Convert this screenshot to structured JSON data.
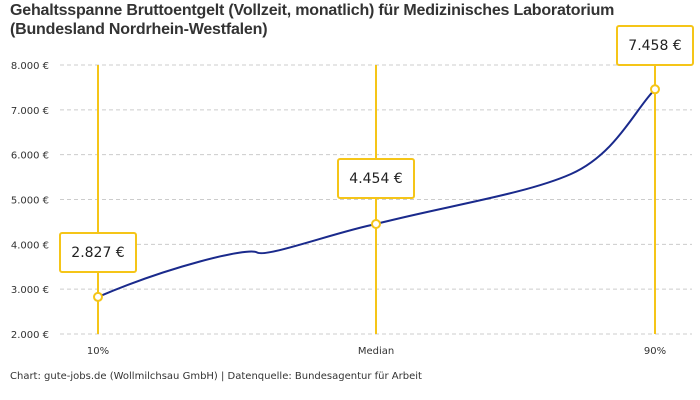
{
  "title_line1": "Gehaltsspanne Bruttoentgelt (Vollzeit, monatlich) für Medizinisches Laboratorium",
  "title_line2": "(Bundesland Nordrhein-Westfalen)",
  "footer": "Chart: gute-jobs.de (Wollmilchsau GmbH) | Datenquelle: Bundesagentur für Arbeit",
  "colors": {
    "line": "#1a2a8c",
    "marker": "#f5c518",
    "grid": "#cccccc"
  },
  "chart_data": {
    "type": "line",
    "categories": [
      "10%",
      "Median",
      "90%"
    ],
    "values": [
      2827,
      4454,
      7458
    ],
    "value_labels": [
      "2.827 €",
      "4.454 €",
      "7.458 €"
    ],
    "ylim": [
      2000,
      8000
    ],
    "yticks": [
      2000,
      3000,
      4000,
      5000,
      6000,
      7000,
      8000
    ],
    "ytick_labels": [
      "2.000 €",
      "3.000 €",
      "4.000 €",
      "5.000 €",
      "6.000 €",
      "7.000 €",
      "8.000 €"
    ],
    "grid": true,
    "xlabel": "",
    "ylabel": ""
  }
}
